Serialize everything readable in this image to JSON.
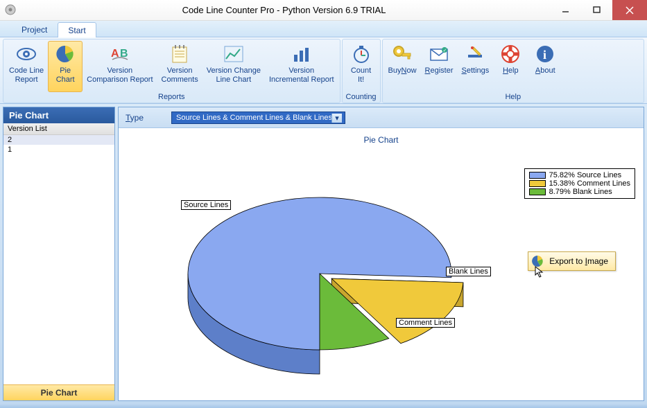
{
  "window": {
    "title": "Code Line Counter Pro - Python Version 6.9 TRIAL"
  },
  "tabs": {
    "project": "Project",
    "start": "Start"
  },
  "ribbon": {
    "groups": {
      "reports": "Reports",
      "counting": "Counting",
      "help": "Help"
    },
    "code_line_report": "Code Line\nReport",
    "pie_chart": "Pie\nChart",
    "version_comparison": "Version\nComparison Report",
    "version_comments": "Version\nComments",
    "version_change_line": "Version Change\nLine Chart",
    "version_incremental": "Version\nIncremental Report",
    "count_it": "Count\nIt!",
    "buy_now": "BuyNow",
    "register": "Register",
    "settings": "Settings",
    "help": "Help",
    "about": "About"
  },
  "sidebar": {
    "title": "Pie Chart",
    "version_list": "Version List",
    "items": [
      "2",
      "1"
    ],
    "footer": "Pie Chart"
  },
  "type_row": {
    "label": "Type",
    "selected": "Source Lines & Comment Lines & Blank Lines"
  },
  "chart": {
    "title": "Pie Chart",
    "type": "pie",
    "slices": [
      {
        "label": "Source Lines",
        "pct": 75.82,
        "color_top": "#8aa8f0",
        "color_side": "#5d7fc9",
        "legend": "75.82% Source Lines"
      },
      {
        "label": "Comment Lines",
        "pct": 15.38,
        "color_top": "#f0c93b",
        "color_side": "#c9a62e",
        "legend": "15.38% Comment Lines"
      },
      {
        "label": "Blank Lines",
        "pct": 8.79,
        "color_top": "#6bbb3a",
        "color_side": "#559030",
        "legend": "8.79% Blank Lines"
      }
    ]
  },
  "context_menu": {
    "export": "Export to Image"
  }
}
